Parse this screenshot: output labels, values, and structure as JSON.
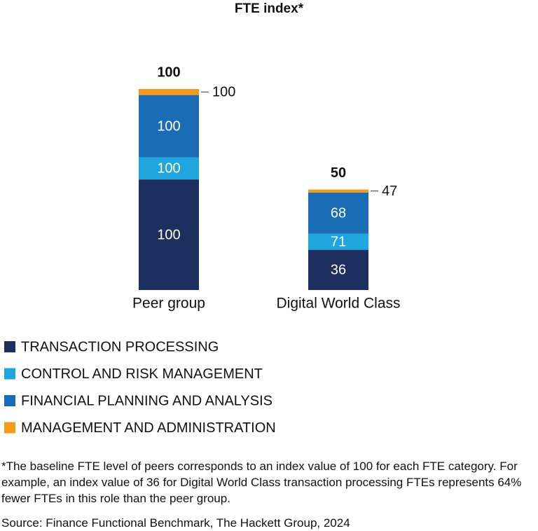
{
  "chart_data": {
    "type": "stacked-bar",
    "title": "FTE index*",
    "categories": [
      "Peer group",
      "Digital World Class"
    ],
    "totals": [
      100,
      50
    ],
    "series": [
      {
        "name": "TRANSACTION PROCESSING",
        "color": "#1d2f5f",
        "values": [
          55,
          20
        ],
        "index": [
          100,
          36
        ]
      },
      {
        "name": "CONTROL AND RISK MANAGEMENT",
        "color": "#1fa6df",
        "values": [
          11,
          8
        ],
        "index": [
          100,
          71
        ]
      },
      {
        "name": "FINANCIAL PLANNING AND ANALYSIS",
        "color": "#1a6db4",
        "values": [
          31,
          20.5
        ],
        "index": [
          100,
          68
        ]
      },
      {
        "name": "MANAGEMENT AND ADMINISTRATION",
        "color": "#f49b1f",
        "values": [
          3,
          1.5
        ],
        "index": [
          100,
          47
        ]
      }
    ],
    "footnote": "*The baseline FTE level of peers corresponds to an index value of 100 for each FTE category. For example, an index value of 36 for Digital World Class transaction processing FTEs represents 64% fewer FTEs in this role than the peer group.",
    "source": "Source: Finance Functional Benchmark, The Hackett Group, 2024"
  }
}
